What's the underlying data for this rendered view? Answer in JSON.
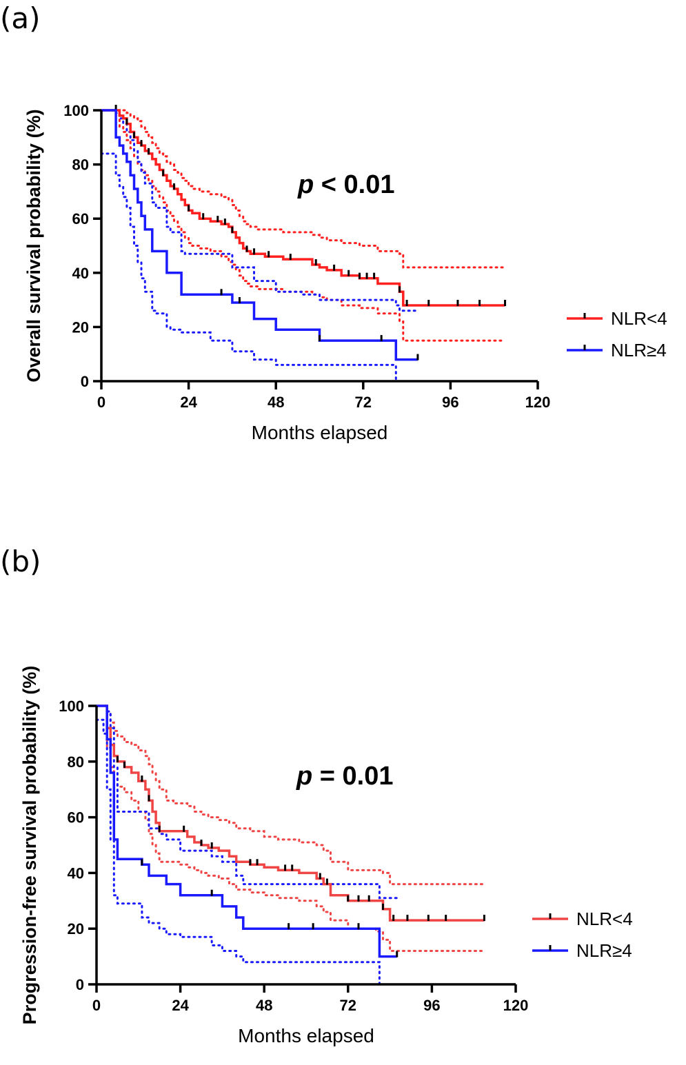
{
  "panels": {
    "a": {
      "label": "(a)"
    },
    "b": {
      "label": "(b)"
    }
  },
  "colors": {
    "nlr_low": "#ff2020",
    "nlr_low_b": "#f04545",
    "nlr_high": "#1a1aff",
    "censor": "#000000"
  },
  "chart_data": [
    {
      "type": "line",
      "subtype": "kaplan-meier",
      "title": "",
      "xlabel": "Months elapsed",
      "ylabel": "Overall survival probability (%)",
      "xlim": [
        0,
        120
      ],
      "ylim": [
        0,
        100
      ],
      "xticks": [
        0,
        24,
        48,
        72,
        96,
        120
      ],
      "yticks": [
        0,
        20,
        40,
        60,
        80,
        100
      ],
      "annotation": {
        "italic": "p",
        "text": " < 0.01"
      },
      "legend": [
        "NLR<4",
        "NLR≥4"
      ],
      "legend_position": "right",
      "series": [
        {
          "name": "NLR<4",
          "color": "#ff2020",
          "x": [
            0,
            3,
            5,
            6,
            7,
            8,
            9,
            10,
            11,
            12,
            13,
            14,
            15,
            16,
            17,
            18,
            19,
            20,
            21,
            22,
            23,
            24,
            25,
            27,
            30,
            33,
            35,
            36,
            37,
            38,
            39,
            40,
            41,
            42,
            43,
            45,
            50,
            56,
            58,
            60,
            62,
            66,
            71,
            76,
            82,
            83,
            84,
            111
          ],
          "y": [
            100,
            100,
            98,
            97,
            95,
            92,
            90,
            88,
            87,
            85,
            84,
            82,
            80,
            78,
            76,
            74,
            72,
            71,
            69,
            67,
            65,
            63,
            62,
            60,
            59,
            58,
            57,
            55,
            53,
            51,
            49,
            48,
            47,
            47,
            47,
            46,
            45,
            45,
            43,
            42,
            41,
            39,
            38,
            36,
            33,
            28,
            28,
            28
          ],
          "ci_upper": [
            100,
            100,
            100,
            100,
            99,
            98,
            97,
            96,
            94,
            92,
            90,
            88,
            86,
            84,
            83,
            81,
            80,
            78,
            77,
            75,
            74,
            72,
            71,
            70,
            69,
            68,
            67,
            65,
            63,
            61,
            59,
            58,
            57,
            57,
            56,
            56,
            55,
            55,
            54,
            53,
            52,
            51,
            50,
            48,
            47,
            42,
            42,
            42
          ],
          "ci_lower": [
            100,
            100,
            94,
            92,
            89,
            86,
            83,
            80,
            78,
            76,
            74,
            72,
            70,
            68,
            66,
            63,
            61,
            59,
            57,
            55,
            53,
            51,
            50,
            49,
            48,
            46,
            44,
            43,
            41,
            39,
            37,
            36,
            35,
            35,
            34,
            34,
            33,
            33,
            32,
            31,
            30,
            28,
            27,
            25,
            22,
            15,
            15,
            15
          ],
          "censor_x": [
            4,
            7,
            9,
            11,
            13,
            17,
            20,
            24,
            28,
            32,
            34,
            36,
            40,
            42,
            46,
            52,
            59,
            64,
            68,
            71,
            73,
            75,
            82,
            84,
            90,
            98,
            104,
            111
          ]
        },
        {
          "name": "NLR≥4",
          "color": "#1a1aff",
          "x": [
            0,
            3,
            4,
            5,
            6,
            7,
            8,
            9,
            10,
            11,
            12,
            14,
            15,
            18,
            19,
            22,
            23,
            30,
            36,
            42,
            48,
            55,
            60,
            70,
            81,
            82,
            87
          ],
          "y": [
            100,
            100,
            90,
            87,
            84,
            81,
            76,
            71,
            66,
            61,
            56,
            48,
            48,
            40,
            40,
            32,
            32,
            32,
            29,
            23,
            19,
            19,
            15,
            15,
            8,
            8,
            8
          ],
          "ci_upper": [
            100,
            100,
            99,
            97,
            95,
            92,
            89,
            85,
            81,
            77,
            73,
            66,
            64,
            57,
            55,
            48,
            47,
            47,
            42,
            37,
            33,
            32,
            30,
            30,
            28,
            26,
            26
          ],
          "ci_lower": [
            84,
            84,
            76,
            72,
            68,
            64,
            57,
            50,
            44,
            38,
            33,
            26,
            25,
            20,
            19,
            18,
            18,
            15,
            11,
            8,
            6,
            6,
            6,
            6,
            0,
            0,
            0
          ],
          "censor_x": [
            33,
            38,
            60,
            77,
            87
          ]
        }
      ]
    },
    {
      "type": "line",
      "subtype": "kaplan-meier",
      "title": "",
      "xlabel": "Months elapsed",
      "ylabel": "Progression-free survival probability (%)",
      "xlim": [
        0,
        120
      ],
      "ylim": [
        0,
        100
      ],
      "xticks": [
        0,
        24,
        48,
        72,
        96,
        120
      ],
      "yticks": [
        0,
        20,
        40,
        60,
        80,
        100
      ],
      "annotation": {
        "italic": "p",
        "text": " = 0.01"
      },
      "legend": [
        "NLR<4",
        "NLR≥4"
      ],
      "legend_position": "right",
      "series": [
        {
          "name": "NLR<4",
          "color": "#f04545",
          "x": [
            0,
            2,
            3,
            4,
            5,
            6,
            8,
            10,
            12,
            14,
            15,
            16,
            17,
            18,
            20,
            22,
            24,
            26,
            28,
            30,
            32,
            35,
            38,
            40,
            44,
            48,
            52,
            58,
            63,
            65,
            67,
            72,
            80,
            82,
            84,
            111
          ],
          "y": [
            100,
            100,
            92,
            86,
            82,
            80,
            78,
            76,
            73,
            70,
            66,
            62,
            58,
            55,
            55,
            55,
            55,
            53,
            51,
            50,
            49,
            48,
            46,
            44,
            43,
            42,
            41,
            40,
            38,
            36,
            32,
            30,
            30,
            27,
            23,
            23
          ],
          "ci_upper": [
            100,
            100,
            98,
            94,
            91,
            89,
            87,
            86,
            84,
            82,
            79,
            76,
            73,
            70,
            66,
            65,
            65,
            64,
            62,
            61,
            60,
            59,
            58,
            56,
            55,
            53,
            52,
            51,
            50,
            48,
            44,
            41,
            41,
            40,
            36,
            36
          ],
          "ci_lower": [
            100,
            100,
            85,
            78,
            74,
            71,
            69,
            66,
            62,
            59,
            54,
            50,
            47,
            44,
            44,
            44,
            43,
            42,
            41,
            40,
            39,
            38,
            36,
            34,
            33,
            32,
            31,
            30,
            28,
            26,
            23,
            20,
            19,
            16,
            12,
            12
          ],
          "censor_x": [
            6,
            8,
            13,
            15,
            18,
            25,
            30,
            33,
            44,
            46,
            54,
            56,
            64,
            66,
            72,
            75,
            78,
            82,
            85,
            89,
            95,
            100,
            111
          ]
        },
        {
          "name": "NLR≥4",
          "color": "#1a1aff",
          "x": [
            0,
            2,
            3,
            4,
            5,
            6,
            10,
            13,
            15,
            18,
            20,
            24,
            33,
            36,
            40,
            42,
            48,
            60,
            70,
            81,
            82,
            86
          ],
          "y": [
            100,
            100,
            88,
            76,
            52,
            45,
            45,
            43,
            39,
            39,
            36,
            32,
            32,
            28,
            24,
            20,
            20,
            20,
            20,
            10,
            10,
            10
          ],
          "ci_upper": [
            100,
            100,
            98,
            92,
            78,
            62,
            62,
            62,
            56,
            54,
            52,
            48,
            46,
            44,
            39,
            36,
            36,
            36,
            36,
            31,
            31,
            31
          ],
          "ci_lower": [
            95,
            90,
            70,
            52,
            32,
            29,
            29,
            24,
            22,
            20,
            18,
            17,
            14,
            12,
            10,
            8,
            8,
            8,
            8,
            0,
            0,
            0
          ],
          "censor_x": [
            13,
            33,
            55,
            62,
            75,
            86
          ]
        }
      ]
    }
  ]
}
